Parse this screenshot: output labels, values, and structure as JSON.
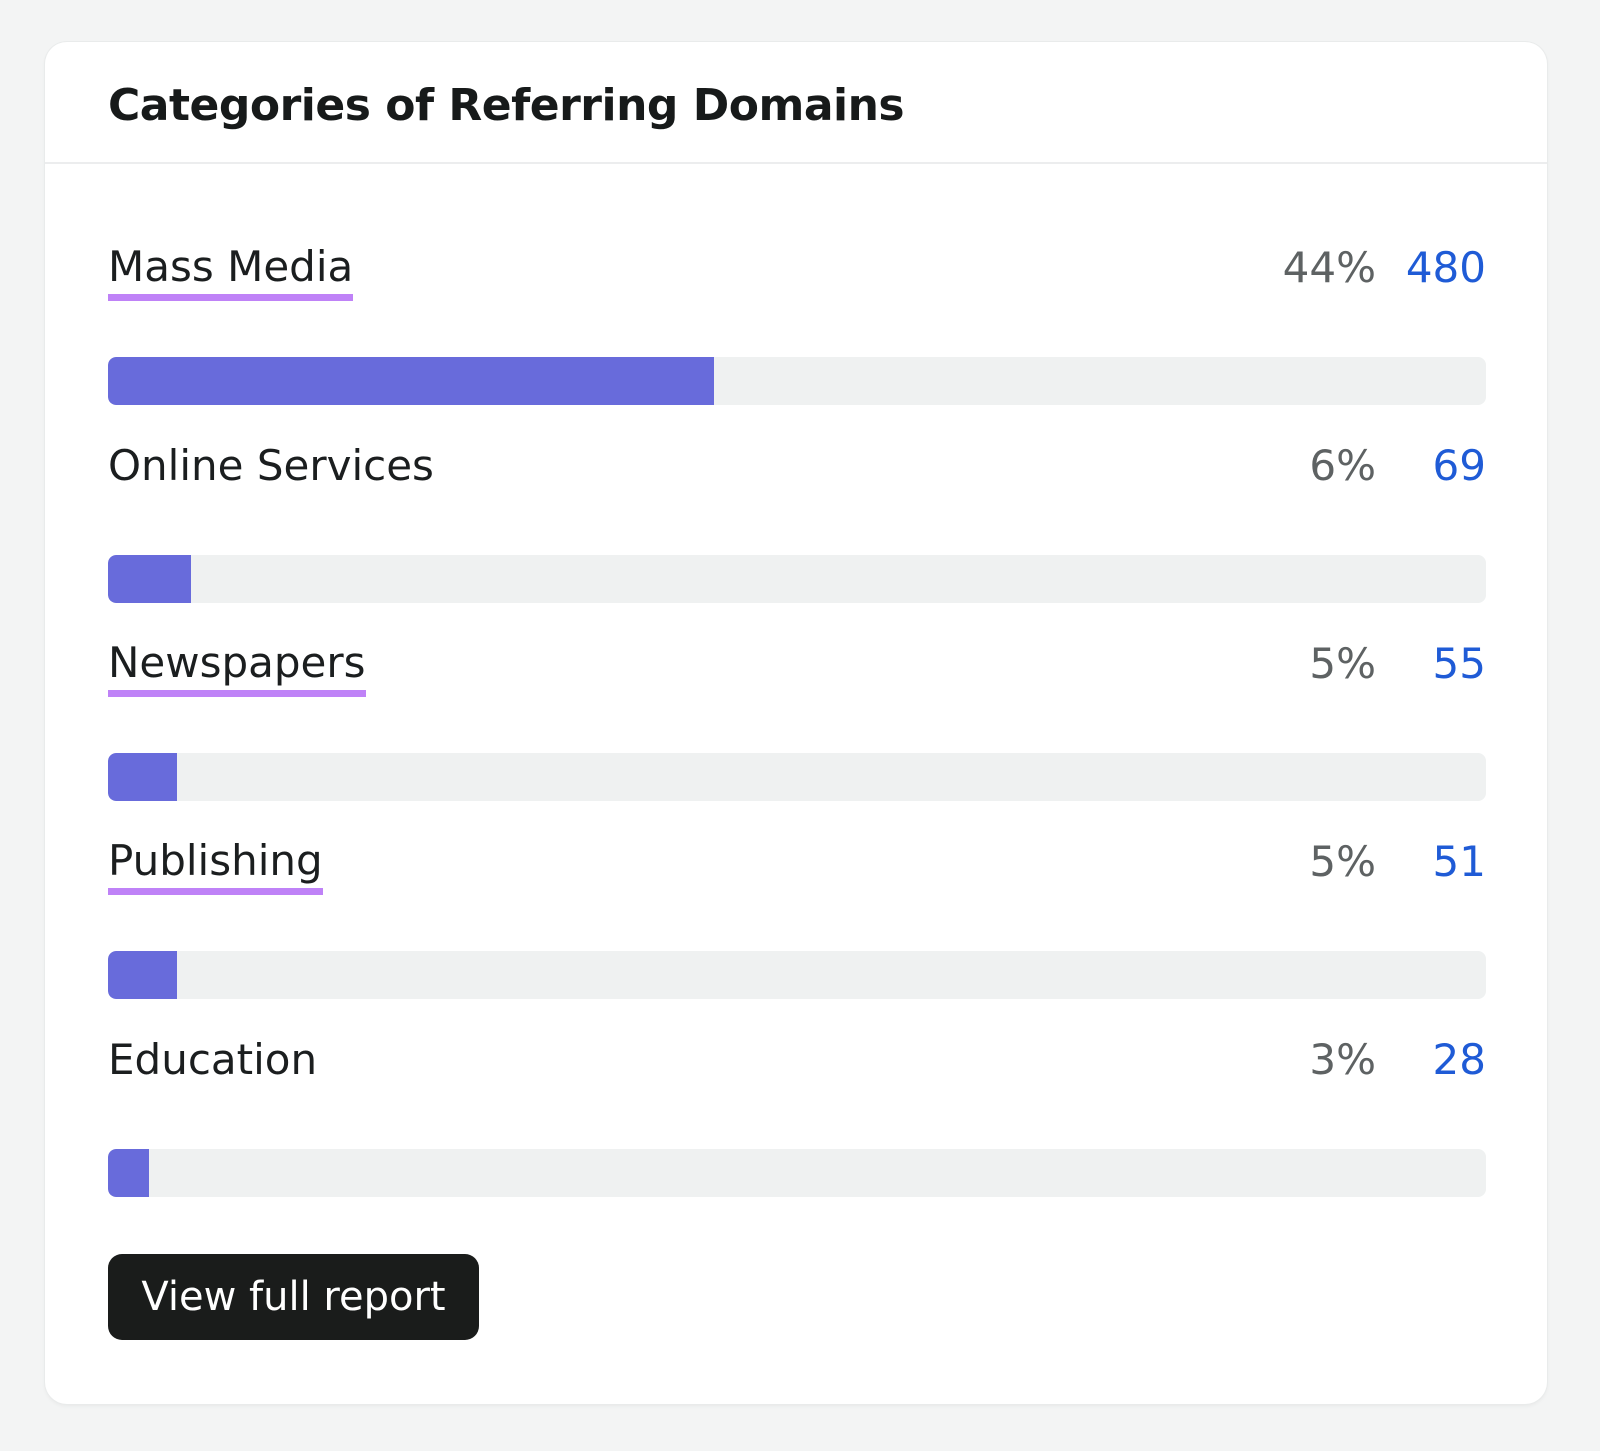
{
  "card": {
    "title": "Categories of Referring Domains",
    "button_label": "View full report"
  },
  "categories": [
    {
      "label": "Mass Media",
      "percent": "44%",
      "count": "480",
      "linked": true,
      "fill_fraction": 0.44
    },
    {
      "label": "Online Services",
      "percent": "6%",
      "count": "69",
      "linked": false,
      "fill_fraction": 0.06
    },
    {
      "label": "Newspapers",
      "percent": "5%",
      "count": "55",
      "linked": true,
      "fill_fraction": 0.05
    },
    {
      "label": "Publishing",
      "percent": "5%",
      "count": "51",
      "linked": true,
      "fill_fraction": 0.05
    },
    {
      "label": "Education",
      "percent": "3%",
      "count": "28",
      "linked": false,
      "fill_fraction": 0.03
    }
  ],
  "colors": {
    "bar_fill": "#686bdb",
    "bar_track": "#eff1f1",
    "link_underline": "#bf82f7",
    "count_text": "#1f5bd6",
    "button_bg": "#1a1c1b"
  }
}
